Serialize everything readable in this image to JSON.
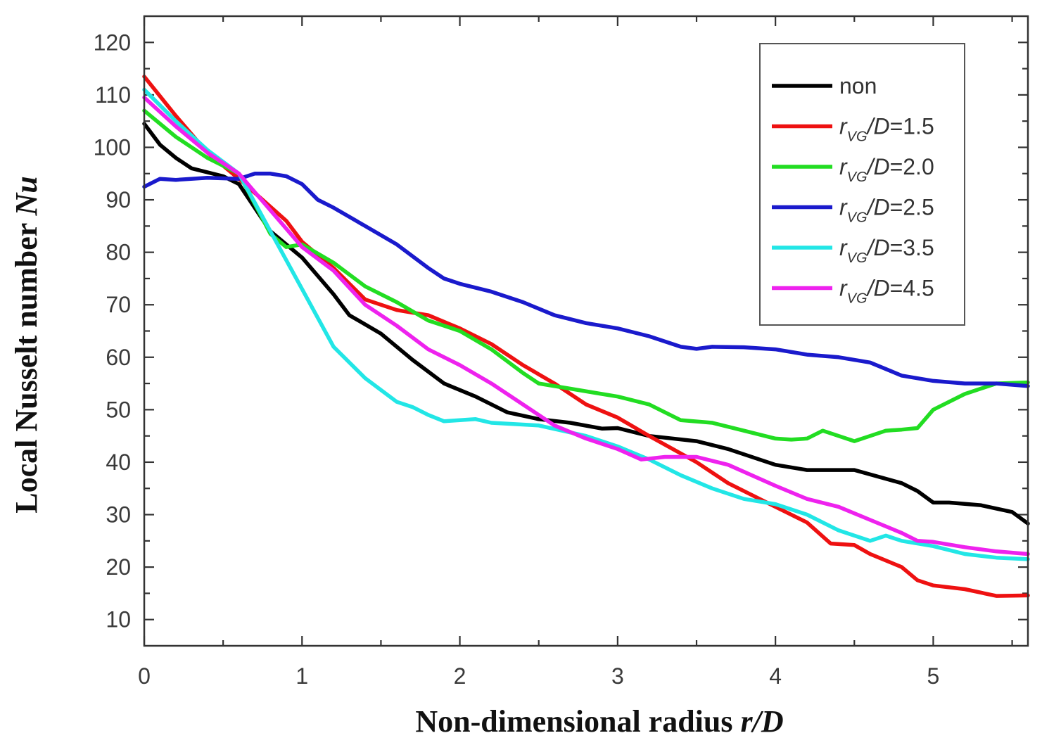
{
  "chart_data": {
    "type": "line",
    "title": "",
    "xlabel": "Non-dimensional radius",
    "xlabel_var": "r/D",
    "ylabel": "Local Nusselt number",
    "ylabel_var": "Nu",
    "xlim": [
      0,
      5.6
    ],
    "ylim": [
      5,
      125
    ],
    "xticks": [
      0,
      1,
      2,
      3,
      4,
      5
    ],
    "yticks": [
      10,
      20,
      30,
      40,
      50,
      60,
      70,
      80,
      90,
      100,
      110,
      120
    ],
    "legend_position": "top-right",
    "series": [
      {
        "name": "non",
        "legend_plain": "non",
        "color": "#000000",
        "x": [
          0,
          0.1,
          0.2,
          0.3,
          0.5,
          0.6,
          0.8,
          1.0,
          1.2,
          1.3,
          1.5,
          1.7,
          1.9,
          2.1,
          2.3,
          2.5,
          2.7,
          2.9,
          3.0,
          3.2,
          3.5,
          3.7,
          4.0,
          4.2,
          4.5,
          4.8,
          4.9,
          5.0,
          5.1,
          5.3,
          5.5,
          5.6
        ],
        "y": [
          104.5,
          100.5,
          98,
          96,
          94.5,
          93,
          84,
          79,
          72,
          68,
          64.5,
          59.5,
          55,
          52.5,
          49.5,
          48.2,
          47.5,
          46.4,
          46.5,
          45,
          44,
          42.5,
          39.5,
          38.5,
          38.5,
          36,
          34.5,
          32.3,
          32.3,
          31.8,
          30.5,
          28.3
        ]
      },
      {
        "name": "r_VG/D=1.5",
        "legend_var": "r",
        "legend_sub": "VG",
        "legend_tail": "/D=1.5",
        "color": "#ee1111",
        "x": [
          0,
          0.2,
          0.4,
          0.6,
          0.9,
          1.0,
          1.2,
          1.4,
          1.6,
          1.8,
          2.0,
          2.2,
          2.4,
          2.6,
          2.8,
          3.0,
          3.2,
          3.5,
          3.7,
          4.0,
          4.2,
          4.35,
          4.5,
          4.6,
          4.8,
          4.9,
          5.0,
          5.2,
          5.4,
          5.6
        ],
        "y": [
          113.5,
          106,
          99,
          94,
          86,
          82,
          77,
          71,
          69,
          68,
          65.5,
          62.5,
          58.5,
          55,
          51,
          48.5,
          45,
          40,
          36,
          31.5,
          28.5,
          24.5,
          24.2,
          22.5,
          20,
          17.5,
          16.5,
          15.8,
          14.5,
          14.6
        ]
      },
      {
        "name": "r_VG/D=2.0",
        "legend_var": "r",
        "legend_sub": "VG",
        "legend_tail": "/D=2.0",
        "color": "#22dd22",
        "x": [
          0,
          0.2,
          0.4,
          0.6,
          0.8,
          0.9,
          1.0,
          1.2,
          1.4,
          1.6,
          1.8,
          2.0,
          2.2,
          2.4,
          2.5,
          2.7,
          2.9,
          3.0,
          3.2,
          3.4,
          3.6,
          3.8,
          4.0,
          4.1,
          4.2,
          4.3,
          4.5,
          4.6,
          4.7,
          4.8,
          4.9,
          5.0,
          5.2,
          5.4,
          5.6
        ],
        "y": [
          107,
          102,
          98,
          95,
          83.5,
          81,
          81.5,
          78,
          73.5,
          70.5,
          67,
          65,
          61.5,
          57,
          55,
          54,
          53,
          52.5,
          51,
          48,
          47.5,
          46,
          44.5,
          44.3,
          44.5,
          46,
          44,
          45,
          46,
          46.2,
          46.5,
          50,
          53,
          55,
          55.2
        ]
      },
      {
        "name": "r_VG/D=2.5",
        "legend_var": "r",
        "legend_sub": "VG",
        "legend_tail": "/D=2.5",
        "color": "#1a1acc",
        "x": [
          0,
          0.1,
          0.2,
          0.4,
          0.6,
          0.7,
          0.8,
          0.9,
          1.0,
          1.1,
          1.2,
          1.4,
          1.6,
          1.8,
          1.9,
          2.0,
          2.2,
          2.4,
          2.6,
          2.8,
          3.0,
          3.2,
          3.4,
          3.5,
          3.6,
          3.8,
          4.0,
          4.2,
          4.4,
          4.6,
          4.8,
          5.0,
          5.2,
          5.4,
          5.6
        ],
        "y": [
          92.5,
          94,
          93.8,
          94.2,
          94,
          95,
          95,
          94.5,
          93,
          90,
          88.5,
          85,
          81.5,
          77,
          75,
          74,
          72.5,
          70.5,
          68,
          66.5,
          65.5,
          64,
          62,
          61.6,
          62,
          61.9,
          61.5,
          60.5,
          60,
          59,
          56.5,
          55.5,
          55,
          55,
          54.5
        ]
      },
      {
        "name": "r_VG/D=3.5",
        "legend_var": "r",
        "legend_sub": "VG",
        "legend_tail": "/D=3.5",
        "color": "#22e6e6",
        "x": [
          0,
          0.2,
          0.4,
          0.6,
          0.8,
          1.0,
          1.2,
          1.4,
          1.6,
          1.7,
          1.8,
          1.9,
          2.0,
          2.1,
          2.2,
          2.5,
          2.8,
          3.0,
          3.2,
          3.4,
          3.6,
          3.8,
          4.0,
          4.2,
          4.4,
          4.6,
          4.7,
          4.8,
          5.0,
          5.2,
          5.4,
          5.6
        ],
        "y": [
          111,
          105,
          99.5,
          95,
          84,
          73,
          62,
          56,
          51.5,
          50.5,
          49,
          47.8,
          48,
          48.2,
          47.5,
          47,
          45,
          43,
          40.5,
          37.5,
          35,
          33,
          32,
          30,
          27,
          25,
          26,
          25,
          24,
          22.5,
          21.8,
          21.5
        ]
      },
      {
        "name": "r_VG/D=4.5",
        "legend_var": "r",
        "legend_sub": "VG",
        "legend_tail": "/D=4.5",
        "color": "#ee22ee",
        "x": [
          0,
          0.2,
          0.4,
          0.6,
          0.8,
          1.0,
          1.2,
          1.4,
          1.6,
          1.8,
          2.0,
          2.2,
          2.4,
          2.6,
          2.8,
          3.0,
          3.15,
          3.3,
          3.5,
          3.7,
          4.0,
          4.2,
          4.4,
          4.6,
          4.8,
          4.9,
          5.0,
          5.2,
          5.4,
          5.6
        ],
        "y": [
          109.5,
          104,
          99,
          95,
          88,
          81,
          76.5,
          70,
          66,
          61.5,
          58.5,
          55,
          51,
          47,
          44.5,
          42.5,
          40.5,
          41,
          41,
          39.5,
          35.5,
          33,
          31.5,
          29,
          26.5,
          25,
          24.8,
          23.8,
          23,
          22.5
        ]
      }
    ]
  }
}
